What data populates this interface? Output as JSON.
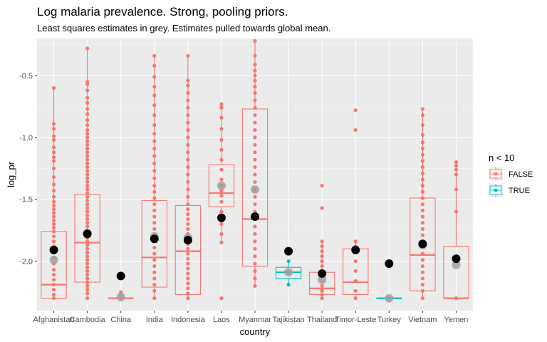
{
  "chart_data": {
    "type": "box",
    "title": "Log malaria prevalence. Strong, pooling priors.",
    "subtitle": "Least squares estimates in grey. Estimates pulled towards global mean.",
    "xlabel": "country",
    "ylabel": "log_pr",
    "ylim": [
      -2.4,
      -0.2
    ],
    "yticks": [
      -2.0,
      -1.5,
      -1.0,
      -0.5
    ],
    "ytick_labels": [
      "-2.0",
      "-1.5",
      "-1.0",
      "-0.5"
    ],
    "grid": true,
    "legend_position": "right",
    "legend": {
      "title": "n < 10",
      "items": [
        {
          "label": "FALSE",
          "color": "#F8766D"
        },
        {
          "label": "TRUE",
          "color": "#00BFC4"
        }
      ]
    },
    "colors": {
      "FALSE": "#F8766D",
      "TRUE": "#00BFC4",
      "ls_estimate": "#A0A0A0",
      "pooled_estimate": "#000000",
      "panel": "#EBEBEB"
    },
    "categories": [
      "Afghanistan",
      "Cambodia",
      "China",
      "India",
      "Indonesia",
      "Laos",
      "Myanmar",
      "Tajikistan",
      "Thailand",
      "Timor-Leste",
      "Turkey",
      "Vietnam",
      "Yemen"
    ],
    "boxes": [
      {
        "country": "Afghanistan",
        "group": "FALSE",
        "lower": -2.3,
        "q1": -2.3,
        "median": -2.19,
        "q3": -1.76,
        "upper": -0.6
      },
      {
        "country": "Cambodia",
        "group": "FALSE",
        "lower": -2.3,
        "q1": -2.17,
        "median": -1.85,
        "q3": -1.46,
        "upper": -0.28
      },
      {
        "country": "China",
        "group": "FALSE",
        "lower": -2.3,
        "q1": -2.3,
        "median": -2.3,
        "q3": -2.3,
        "upper": -2.3
      },
      {
        "country": "India",
        "group": "FALSE",
        "lower": -2.3,
        "q1": -2.21,
        "median": -1.97,
        "q3": -1.51,
        "upper": -0.34
      },
      {
        "country": "Indonesia",
        "group": "FALSE",
        "lower": -2.3,
        "q1": -2.27,
        "median": -1.92,
        "q3": -1.55,
        "upper": -0.34
      },
      {
        "country": "Laos",
        "group": "FALSE",
        "lower": -1.85,
        "q1": -1.56,
        "median": -1.45,
        "q3": -1.22,
        "upper": -0.73
      },
      {
        "country": "Myanmar",
        "group": "FALSE",
        "lower": -2.2,
        "q1": -2.04,
        "median": -1.66,
        "q3": -0.77,
        "upper": -0.22
      },
      {
        "country": "Tajikistan",
        "group": "TRUE",
        "lower": -2.19,
        "q1": -2.14,
        "median": -2.09,
        "q3": -2.05,
        "upper": -2.0
      },
      {
        "country": "Thailand",
        "group": "FALSE",
        "lower": -2.3,
        "q1": -2.27,
        "median": -2.22,
        "q3": -2.09,
        "upper": -1.84
      },
      {
        "country": "Timor-Leste",
        "group": "FALSE",
        "lower": -2.3,
        "q1": -2.27,
        "median": -2.17,
        "q3": -1.9,
        "upper": -1.84
      },
      {
        "country": "Turkey",
        "group": "TRUE",
        "lower": -2.3,
        "q1": -2.3,
        "median": -2.3,
        "q3": -2.3,
        "upper": -2.3
      },
      {
        "country": "Vietnam",
        "group": "FALSE",
        "lower": -2.3,
        "q1": -2.24,
        "median": -1.95,
        "q3": -1.49,
        "upper": -0.77
      },
      {
        "country": "Yemen",
        "group": "FALSE",
        "lower": -2.3,
        "q1": -2.3,
        "median": -2.3,
        "q3": -1.88,
        "upper": -1.2
      }
    ],
    "observations": [
      {
        "country": "Afghanistan",
        "values": [
          -0.6,
          -0.89,
          -0.93,
          -0.99,
          -1.02,
          -1.08,
          -1.12,
          -1.16,
          -1.19,
          -1.25,
          -1.32,
          -1.38,
          -1.43,
          -1.48,
          -1.52,
          -1.55,
          -1.58,
          -1.61,
          -1.64,
          -1.67,
          -1.7,
          -1.73,
          -1.76,
          -1.8,
          -1.84,
          -1.88,
          -1.92,
          -1.97,
          -2.02,
          -2.07,
          -2.11,
          -2.15,
          -2.19,
          -2.23,
          -2.27,
          -2.3
        ]
      },
      {
        "country": "Cambodia",
        "values": [
          -0.28,
          -0.55,
          -0.57,
          -0.62,
          -0.68,
          -0.72,
          -0.77,
          -0.81,
          -0.86,
          -0.9,
          -0.94,
          -0.97,
          -1.0,
          -1.03,
          -1.06,
          -1.09,
          -1.12,
          -1.15,
          -1.18,
          -1.21,
          -1.24,
          -1.27,
          -1.3,
          -1.33,
          -1.36,
          -1.39,
          -1.42,
          -1.45,
          -1.48,
          -1.51,
          -1.54,
          -1.57,
          -1.6,
          -1.63,
          -1.66,
          -1.69,
          -1.72,
          -1.75,
          -1.78,
          -1.81,
          -1.84,
          -1.87,
          -1.9,
          -1.93,
          -1.96,
          -1.99,
          -2.02,
          -2.05,
          -2.08,
          -2.11,
          -2.14,
          -2.17,
          -2.2,
          -2.23,
          -2.26,
          -2.3
        ]
      },
      {
        "country": "China",
        "values": [
          -2.25,
          -2.28,
          -2.3
        ]
      },
      {
        "country": "India",
        "values": [
          -0.34,
          -0.42,
          -0.51,
          -0.59,
          -0.66,
          -0.74,
          -0.82,
          -0.9,
          -0.97,
          -1.03,
          -1.09,
          -1.15,
          -1.21,
          -1.27,
          -1.33,
          -1.39,
          -1.44,
          -1.49,
          -1.54,
          -1.59,
          -1.64,
          -1.69,
          -1.74,
          -1.79,
          -1.84,
          -1.89,
          -1.94,
          -1.99,
          -2.04,
          -2.09,
          -2.14,
          -2.19,
          -2.24,
          -2.3
        ]
      },
      {
        "country": "Indonesia",
        "values": [
          -0.34,
          -0.54,
          -0.58,
          -0.64,
          -0.7,
          -0.76,
          -0.82,
          -0.88,
          -0.94,
          -1.0,
          -1.06,
          -1.12,
          -1.18,
          -1.24,
          -1.3,
          -1.36,
          -1.42,
          -1.48,
          -1.54,
          -1.58,
          -1.62,
          -1.66,
          -1.7,
          -1.74,
          -1.78,
          -1.82,
          -1.86,
          -1.9,
          -1.94,
          -1.98,
          -2.02,
          -2.06,
          -2.1,
          -2.14,
          -2.18,
          -2.22,
          -2.26,
          -2.3
        ]
      },
      {
        "country": "Laos",
        "values": [
          -0.73,
          -0.76,
          -0.84,
          -0.93,
          -1.02,
          -1.1,
          -1.18,
          -1.26,
          -1.34,
          -1.39,
          -1.43,
          -1.47,
          -1.52,
          -1.6,
          -1.7,
          -1.78,
          -1.85,
          -2.3
        ]
      },
      {
        "country": "Myanmar",
        "values": [
          -0.22,
          -0.34,
          -0.41,
          -0.46,
          -0.5,
          -0.54,
          -0.59,
          -0.64,
          -0.7,
          -0.76,
          -0.82,
          -0.88,
          -0.94,
          -1.0,
          -1.06,
          -1.12,
          -1.18,
          -1.24,
          -1.3,
          -1.36,
          -1.42,
          -1.48,
          -1.54,
          -1.6,
          -1.66,
          -1.72,
          -1.78,
          -1.84,
          -1.9,
          -1.96,
          -2.02,
          -2.08,
          -2.14,
          -2.2
        ]
      },
      {
        "country": "Tajikistan",
        "values": [
          -2.0,
          -2.09,
          -2.19
        ]
      },
      {
        "country": "Thailand",
        "values": [
          -1.39,
          -1.57,
          -1.84,
          -1.88,
          -1.92,
          -1.96,
          -2.0,
          -2.04,
          -2.08,
          -2.12,
          -2.16,
          -2.2,
          -2.24,
          -2.27,
          -2.3
        ]
      },
      {
        "country": "Timor-Leste",
        "values": [
          -0.78,
          -0.94,
          -1.84,
          -1.88,
          -1.92,
          -2.0,
          -2.08,
          -2.16,
          -2.24,
          -2.3
        ]
      },
      {
        "country": "Turkey",
        "values": [
          -2.3
        ]
      },
      {
        "country": "Vietnam",
        "values": [
          -0.77,
          -0.82,
          -0.9,
          -0.98,
          -1.04,
          -1.09,
          -1.14,
          -1.19,
          -1.24,
          -1.29,
          -1.34,
          -1.39,
          -1.44,
          -1.49,
          -1.54,
          -1.59,
          -1.64,
          -1.69,
          -1.74,
          -1.79,
          -1.84,
          -1.89,
          -1.94,
          -1.99,
          -2.04,
          -2.09,
          -2.14,
          -2.19,
          -2.24,
          -2.3
        ]
      },
      {
        "country": "Yemen",
        "values": [
          -1.2,
          -1.23,
          -1.26,
          -1.3,
          -1.42,
          -1.6,
          -2.0,
          -2.3
        ]
      }
    ],
    "ls_estimates": [
      {
        "country": "Afghanistan",
        "value": -1.99
      },
      {
        "country": "Cambodia",
        "value": -1.77
      },
      {
        "country": "China",
        "value": -2.29
      },
      {
        "country": "India",
        "value": -1.8
      },
      {
        "country": "Indonesia",
        "value": -1.81
      },
      {
        "country": "Laos",
        "value": -1.39
      },
      {
        "country": "Myanmar",
        "value": -1.42
      },
      {
        "country": "Tajikistan",
        "value": -2.09
      },
      {
        "country": "Thailand",
        "value": -2.15
      },
      {
        "country": "Timor-Leste",
        "value": -1.91
      },
      {
        "country": "Turkey",
        "value": -2.3
      },
      {
        "country": "Vietnam",
        "value": -1.87
      },
      {
        "country": "Yemen",
        "value": -2.03
      }
    ],
    "pooled_estimates": [
      {
        "country": "Afghanistan",
        "value": -1.91
      },
      {
        "country": "Cambodia",
        "value": -1.78
      },
      {
        "country": "China",
        "value": -2.12
      },
      {
        "country": "India",
        "value": -1.82
      },
      {
        "country": "Indonesia",
        "value": -1.83
      },
      {
        "country": "Laos",
        "value": -1.65
      },
      {
        "country": "Myanmar",
        "value": -1.64
      },
      {
        "country": "Tajikistan",
        "value": -1.92
      },
      {
        "country": "Thailand",
        "value": -2.1
      },
      {
        "country": "Timor-Leste",
        "value": -1.91
      },
      {
        "country": "Turkey",
        "value": -2.02
      },
      {
        "country": "Vietnam",
        "value": -1.86
      },
      {
        "country": "Yemen",
        "value": -1.98
      }
    ]
  }
}
